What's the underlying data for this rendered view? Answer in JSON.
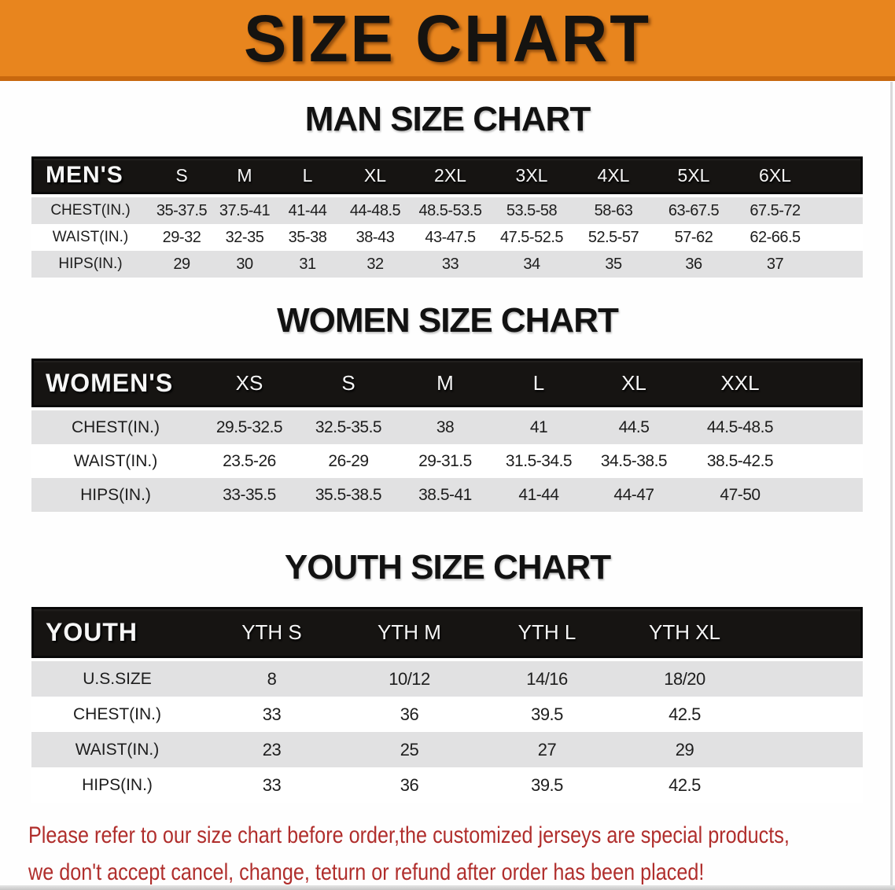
{
  "banner": {
    "title": "SIZE CHART",
    "bg_color": "#E8851E",
    "edge_color": "#C8680E"
  },
  "colors": {
    "table_header_bg": "#161412",
    "stripe_row_bg": "#E1E1E2",
    "white_row_bg": "#FFFFFF",
    "disclaimer_red": "#B02E2C"
  },
  "sections": [
    {
      "id": "men",
      "title": "MAN SIZE CHART",
      "header_label": "MEN'S",
      "columns": [
        "S",
        "M",
        "L",
        "XL",
        "2XL",
        "3XL",
        "4XL",
        "5XL",
        "6XL"
      ],
      "rows": [
        {
          "label": "CHEST(IN.)",
          "values": [
            "35-37.5",
            "37.5-41",
            "41-44",
            "44-48.5",
            "48.5-53.5",
            "53.5-58",
            "58-63",
            "63-67.5",
            "67.5-72"
          ]
        },
        {
          "label": "WAIST(IN.)",
          "values": [
            "29-32",
            "32-35",
            "35-38",
            "38-43",
            "43-47.5",
            "47.5-52.5",
            "52.5-57",
            "57-62",
            "62-66.5"
          ]
        },
        {
          "label": "HIPS(IN.)",
          "values": [
            "29",
            "30",
            "31",
            "32",
            "33",
            "34",
            "35",
            "36",
            "37"
          ]
        }
      ]
    },
    {
      "id": "women",
      "title": "WOMEN SIZE CHART",
      "header_label": "WOMEN'S",
      "columns": [
        "XS",
        "S",
        "M",
        "L",
        "XL",
        "XXL"
      ],
      "rows": [
        {
          "label": "CHEST(IN.)",
          "values": [
            "29.5-32.5",
            "32.5-35.5",
            "38",
            "41",
            "44.5",
            "44.5-48.5"
          ]
        },
        {
          "label": "WAIST(IN.)",
          "values": [
            "23.5-26",
            "26-29",
            "29-31.5",
            "31.5-34.5",
            "34.5-38.5",
            "38.5-42.5"
          ]
        },
        {
          "label": "HIPS(IN.)",
          "values": [
            "33-35.5",
            "35.5-38.5",
            "38.5-41",
            "41-44",
            "44-47",
            "47-50"
          ]
        }
      ]
    },
    {
      "id": "youth",
      "title": "YOUTH SIZE CHART",
      "header_label": "YOUTH",
      "columns": [
        "YTH S",
        "YTH M",
        "YTH L",
        "YTH XL"
      ],
      "rows": [
        {
          "label": "U.S.SIZE",
          "values": [
            "8",
            "10/12",
            "14/16",
            "18/20"
          ]
        },
        {
          "label": "CHEST(IN.)",
          "values": [
            "33",
            "36",
            "39.5",
            "42.5"
          ]
        },
        {
          "label": "WAIST(IN.)",
          "values": [
            "23",
            "25",
            "27",
            "29"
          ]
        },
        {
          "label": "HIPS(IN.)",
          "values": [
            "33",
            "36",
            "39.5",
            "42.5"
          ]
        }
      ]
    }
  ],
  "disclaimer": {
    "line1": "Please refer to our size chart before order,the customized jerseys are special products,",
    "line2": "we don't accept cancel, change, teturn or refund after order has been placed!"
  }
}
